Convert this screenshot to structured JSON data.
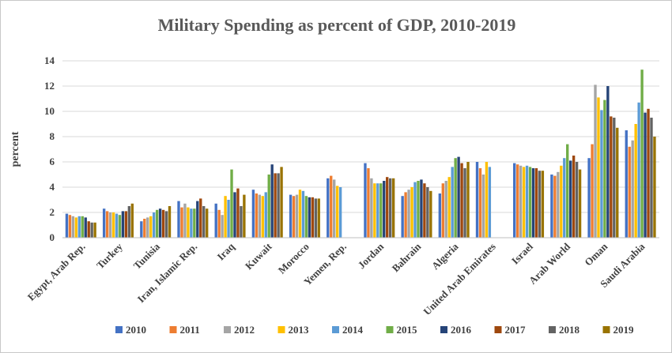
{
  "chart_data": {
    "type": "bar",
    "title": "Military Spending as percent of GDP, 2010-2019",
    "xlabel": "",
    "ylabel": "percent",
    "ylim": [
      0,
      14
    ],
    "yticks": [
      0,
      2,
      4,
      6,
      8,
      10,
      12,
      14
    ],
    "grid": true,
    "legend_position": "bottom",
    "categories": [
      "Egypt, Arab Rep.",
      "Turkey",
      "Tunisia",
      "Iran, Islamic Rep.",
      "Iraq",
      "Kuwait",
      "Morocco",
      "Yemen, Rep.",
      "Jordan",
      "Bahrain",
      "Algeria",
      "United Arab Emirates",
      "Israel",
      "Arab World",
      "Oman",
      "Saudi Arabia"
    ],
    "series": [
      {
        "name": "2010",
        "color": "#4472c4",
        "values": [
          1.9,
          2.3,
          1.3,
          2.9,
          2.7,
          3.8,
          3.4,
          4.7,
          5.9,
          3.3,
          3.5,
          6.0,
          5.9,
          5.0,
          6.3,
          8.5
        ]
      },
      {
        "name": "2011",
        "color": "#ed7d31",
        "values": [
          1.8,
          2.1,
          1.5,
          2.4,
          2.2,
          3.5,
          3.3,
          4.9,
          5.5,
          3.6,
          4.3,
          5.5,
          5.8,
          4.9,
          7.4,
          7.2
        ]
      },
      {
        "name": "2012",
        "color": "#a5a5a5",
        "values": [
          1.7,
          2.0,
          1.6,
          2.7,
          1.8,
          3.4,
          3.4,
          4.6,
          4.7,
          3.8,
          4.5,
          5.0,
          5.7,
          5.2,
          12.1,
          7.7
        ]
      },
      {
        "name": "2013",
        "color": "#ffc000",
        "values": [
          1.6,
          2.0,
          1.7,
          2.4,
          3.3,
          3.3,
          3.8,
          4.1,
          4.3,
          4.0,
          4.8,
          6.0,
          5.6,
          5.7,
          11.1,
          9.0
        ]
      },
      {
        "name": "2014",
        "color": "#5b9bd5",
        "values": [
          1.7,
          1.9,
          2.0,
          2.3,
          3.0,
          3.6,
          3.7,
          4.0,
          4.3,
          4.4,
          5.6,
          5.6,
          5.7,
          6.3,
          10.1,
          10.7
        ]
      },
      {
        "name": "2015",
        "color": "#70ad47",
        "values": [
          1.7,
          1.8,
          2.2,
          2.3,
          5.4,
          5.0,
          3.3,
          null,
          4.3,
          4.5,
          6.3,
          null,
          5.6,
          7.4,
          10.9,
          13.3
        ]
      },
      {
        "name": "2016",
        "color": "#264478",
        "values": [
          1.6,
          2.1,
          2.3,
          2.9,
          3.6,
          5.8,
          3.2,
          null,
          4.5,
          4.6,
          6.4,
          null,
          5.5,
          6.1,
          12.0,
          9.9
        ]
      },
      {
        "name": "2017",
        "color": "#9e480e",
        "values": [
          1.3,
          2.1,
          2.2,
          3.1,
          3.9,
          5.1,
          3.2,
          null,
          4.8,
          4.3,
          5.9,
          null,
          5.5,
          6.5,
          9.6,
          10.2
        ]
      },
      {
        "name": "2018",
        "color": "#636363",
        "values": [
          1.2,
          2.5,
          2.1,
          2.5,
          2.5,
          5.1,
          3.1,
          null,
          4.7,
          4.0,
          5.5,
          null,
          5.3,
          6.0,
          9.5,
          9.5
        ]
      },
      {
        "name": "2019",
        "color": "#997300",
        "values": [
          1.2,
          2.7,
          2.5,
          2.3,
          3.4,
          5.6,
          3.1,
          null,
          4.7,
          3.7,
          6.0,
          null,
          5.3,
          5.4,
          8.7,
          8.0
        ]
      }
    ]
  }
}
